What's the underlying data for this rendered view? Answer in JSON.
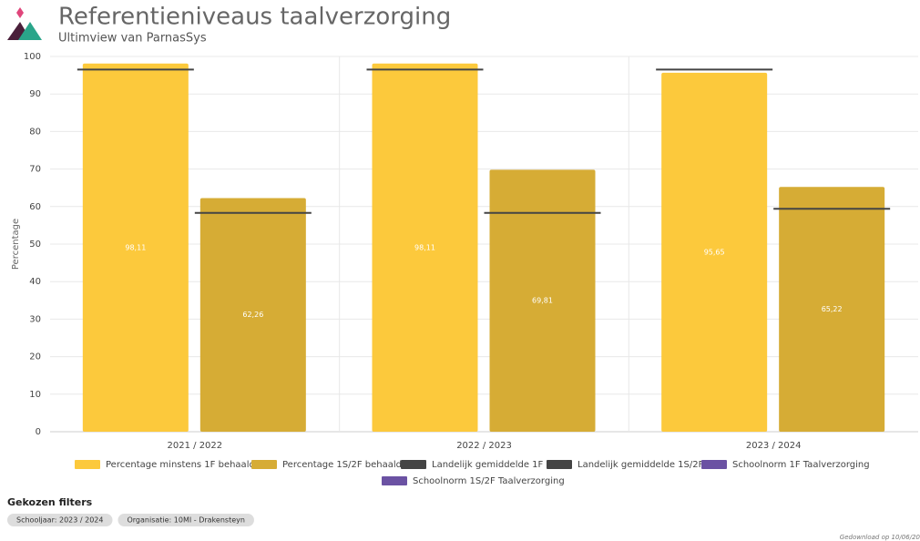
{
  "header": {
    "title": "Referentieniveaus taalverzorging",
    "subtitle": "Ultimview van ParnasSys"
  },
  "chart_data": {
    "type": "bar",
    "y_label": "Percentage",
    "categories": [
      "2021 / 2022",
      "2022 / 2023",
      "2023 / 2024"
    ],
    "series": [
      {
        "name": "Percentage minstens 1F behaald",
        "color": "#fcc93c",
        "kind": "bar",
        "values": [
          98.11,
          98.11,
          95.65
        ],
        "value_labels": [
          "98,11",
          "98,11",
          "95,65"
        ]
      },
      {
        "name": "Percentage 1S/2F behaald",
        "color": "#d6ac35",
        "kind": "bar",
        "values": [
          62.26,
          69.81,
          65.22
        ],
        "value_labels": [
          "62,26",
          "69,81",
          "65,22"
        ]
      },
      {
        "name": "Landelijk gemiddelde 1F",
        "color": "#444444",
        "kind": "marker",
        "bar": 0,
        "values": [
          96.5,
          96.5,
          96.5
        ]
      },
      {
        "name": "Landelijk gemiddelde 1S/2F",
        "color": "#444444",
        "kind": "marker",
        "bar": 1,
        "values": [
          58.3,
          58.3,
          59.4
        ]
      },
      {
        "name": "Schoolnorm 1F Taalverzorging",
        "color": "#6b52a3",
        "kind": "marker",
        "bar": 0,
        "values": [
          null,
          null,
          null
        ]
      },
      {
        "name": "Schoolnorm 1S/2F Taalverzorging",
        "color": "#6b52a3",
        "kind": "marker",
        "bar": 1,
        "values": [
          null,
          null,
          null
        ]
      }
    ],
    "ylim": [
      0,
      100
    ],
    "yticks": [
      0,
      10,
      20,
      30,
      40,
      50,
      60,
      70,
      80,
      90,
      100
    ],
    "grid": true
  },
  "filters": {
    "title": "Gekozen filters",
    "items": [
      "Schooljaar: 2023 / 2024",
      "Organisatie: 10MI - Drakensteyn"
    ]
  },
  "footer": "Gedownload op 10/06/20"
}
